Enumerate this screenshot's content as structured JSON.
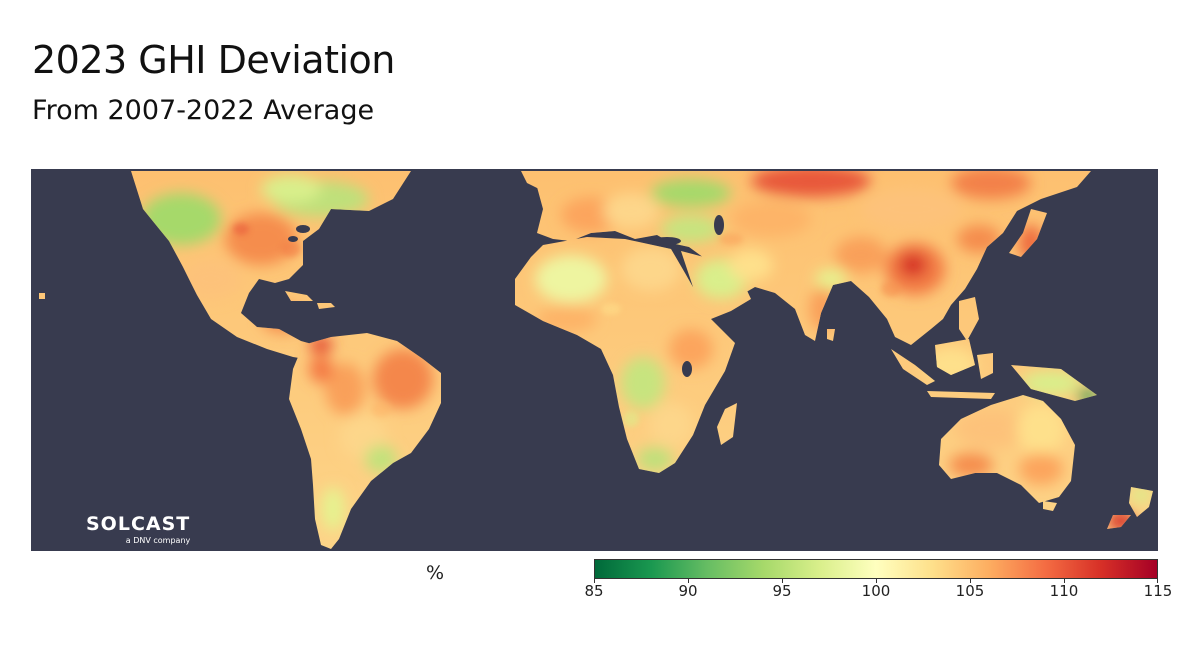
{
  "header": {
    "title": "2023 GHI Deviation",
    "subtitle": "From 2007-2022 Average"
  },
  "logo": {
    "word": "SOLCAST",
    "tagline": "a DNV company"
  },
  "legend": {
    "unit": "%",
    "min": 85,
    "max": 115,
    "ticks": [
      "85",
      "90",
      "95",
      "100",
      "105",
      "110",
      "115"
    ],
    "tick_values": [
      85,
      90,
      95,
      100,
      105,
      110,
      115
    ],
    "colors": [
      "#00693a",
      "#1a9850",
      "#66bd63",
      "#a6d96a",
      "#d9ef8b",
      "#ffffbf",
      "#fee08b",
      "#fdae61",
      "#f46d43",
      "#d73027",
      "#a50026"
    ]
  },
  "map": {
    "ocean_color": "#383b4f"
  }
}
